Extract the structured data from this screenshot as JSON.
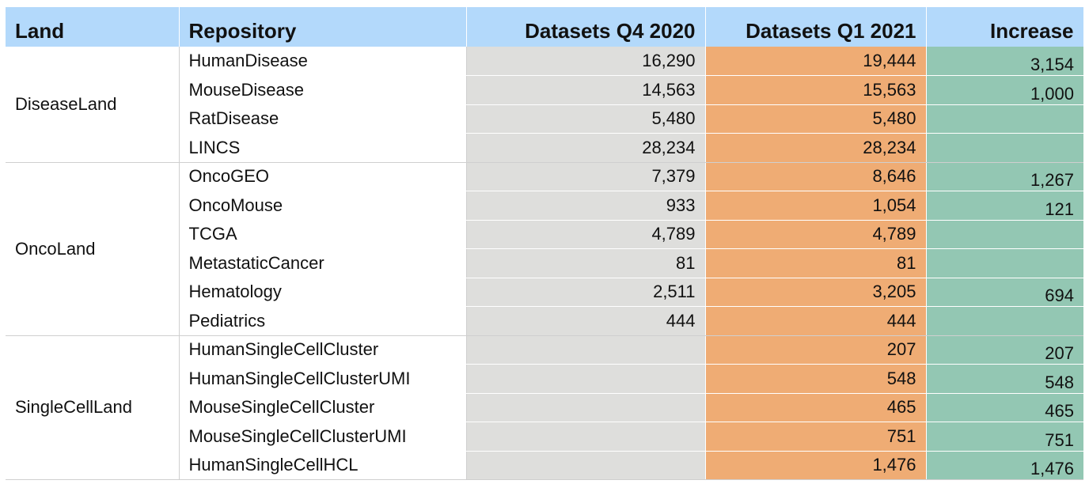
{
  "headers": {
    "land": "Land",
    "repository": "Repository",
    "q4_2020": "Datasets Q4 2020",
    "q1_2021": "Datasets Q1 2021",
    "increase": "Increase"
  },
  "groups": [
    {
      "land": "DiseaseLand",
      "rows": [
        {
          "repository": "HumanDisease",
          "q4_2020": "16,290",
          "q1_2021": "19,444",
          "increase": "3,154"
        },
        {
          "repository": "MouseDisease",
          "q4_2020": "14,563",
          "q1_2021": "15,563",
          "increase": "1,000"
        },
        {
          "repository": "RatDisease",
          "q4_2020": "5,480",
          "q1_2021": "5,480",
          "increase": ""
        },
        {
          "repository": "LINCS",
          "q4_2020": "28,234",
          "q1_2021": "28,234",
          "increase": ""
        }
      ]
    },
    {
      "land": "OncoLand",
      "rows": [
        {
          "repository": "OncoGEO",
          "q4_2020": "7,379",
          "q1_2021": "8,646",
          "increase": "1,267"
        },
        {
          "repository": "OncoMouse",
          "q4_2020": "933",
          "q1_2021": "1,054",
          "increase": "121"
        },
        {
          "repository": "TCGA",
          "q4_2020": "4,789",
          "q1_2021": "4,789",
          "increase": ""
        },
        {
          "repository": "MetastaticCancer",
          "q4_2020": "81",
          "q1_2021": "81",
          "increase": ""
        },
        {
          "repository": "Hematology",
          "q4_2020": "2,511",
          "q1_2021": "3,205",
          "increase": "694"
        },
        {
          "repository": "Pediatrics",
          "q4_2020": "444",
          "q1_2021": "444",
          "increase": ""
        }
      ]
    },
    {
      "land": "SingleCellLand",
      "rows": [
        {
          "repository": "HumanSingleCellCluster",
          "q4_2020": "",
          "q1_2021": "207",
          "increase": "207"
        },
        {
          "repository": "HumanSingleCellClusterUMI",
          "q4_2020": "",
          "q1_2021": "548",
          "increase": "548"
        },
        {
          "repository": "MouseSingleCellCluster",
          "q4_2020": "",
          "q1_2021": "465",
          "increase": "465"
        },
        {
          "repository": "MouseSingleCellClusterUMI",
          "q4_2020": "",
          "q1_2021": "751",
          "increase": "751"
        },
        {
          "repository": "HumanSingleCellHCL",
          "q4_2020": "",
          "q1_2021": "1,476",
          "increase": "1,476"
        }
      ]
    }
  ],
  "colors": {
    "header": "#b3d9fb",
    "q4_2020": "#dededc",
    "q1_2021": "#efac74",
    "increase": "#93c7b3"
  }
}
